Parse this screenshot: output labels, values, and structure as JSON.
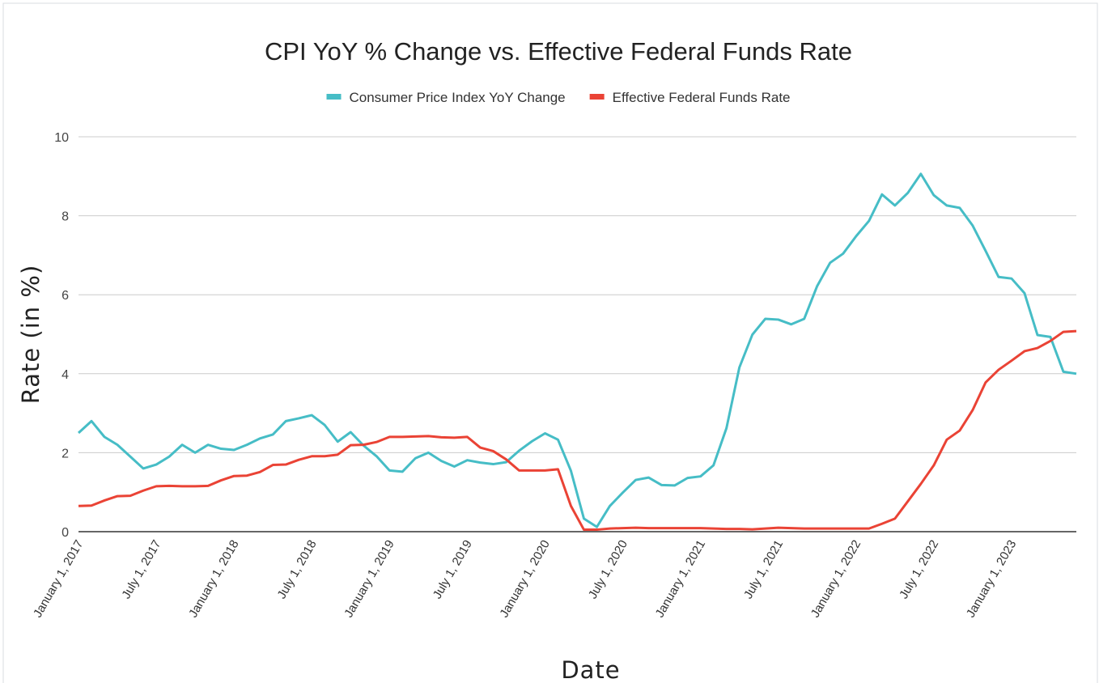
{
  "chart_data": {
    "type": "line",
    "title": "CPI YoY % Change vs. Effective Federal Funds Rate",
    "x_label": "Date",
    "y_label": "Rate (in %)",
    "categories": [
      "January 1, 2017",
      null,
      null,
      null,
      null,
      null,
      "July 1, 2017",
      null,
      null,
      null,
      null,
      null,
      "January 1, 2018",
      null,
      null,
      null,
      null,
      null,
      "July 1, 2018",
      null,
      null,
      null,
      null,
      null,
      "January 1, 2019",
      null,
      null,
      null,
      null,
      null,
      "July 1, 2019",
      null,
      null,
      null,
      null,
      null,
      "January 1, 2020",
      null,
      null,
      null,
      null,
      null,
      "July 1, 2020",
      null,
      null,
      null,
      null,
      null,
      "January 1, 2021",
      null,
      null,
      null,
      null,
      null,
      "July 1, 2021",
      null,
      null,
      null,
      null,
      null,
      "January 1, 2022",
      null,
      null,
      null,
      null,
      null,
      "July 1, 2022",
      null,
      null,
      null,
      null,
      null,
      "January 1, 2023",
      null,
      null,
      null,
      null,
      null
    ],
    "series": [
      {
        "name": "Consumer Price Index YoY Change",
        "color": "#46bdc6",
        "values": [
          2.5,
          2.8,
          2.4,
          2.2,
          1.9,
          1.6,
          1.7,
          1.9,
          2.2,
          2.0,
          2.2,
          2.1,
          2.07,
          2.2,
          2.36,
          2.46,
          2.8,
          2.87,
          2.95,
          2.7,
          2.28,
          2.52,
          2.18,
          1.91,
          1.55,
          1.52,
          1.86,
          2.0,
          1.79,
          1.65,
          1.81,
          1.75,
          1.71,
          1.76,
          2.05,
          2.29,
          2.49,
          2.33,
          1.54,
          0.33,
          0.12,
          0.65,
          0.99,
          1.31,
          1.37,
          1.18,
          1.17,
          1.36,
          1.4,
          1.68,
          2.62,
          4.16,
          4.99,
          5.39,
          5.37,
          5.25,
          5.39,
          6.22,
          6.81,
          7.04,
          7.48,
          7.87,
          8.54,
          8.26,
          8.58,
          9.06,
          8.52,
          8.26,
          8.2,
          7.75,
          7.11,
          6.45,
          6.41,
          6.04,
          4.98,
          4.93,
          4.05,
          4.0
        ]
      },
      {
        "name": "Effective Federal Funds Rate",
        "color": "#ea4335",
        "values": [
          0.65,
          0.66,
          0.79,
          0.9,
          0.91,
          1.04,
          1.15,
          1.16,
          1.15,
          1.15,
          1.16,
          1.3,
          1.41,
          1.42,
          1.51,
          1.69,
          1.7,
          1.82,
          1.91,
          1.91,
          1.95,
          2.19,
          2.2,
          2.27,
          2.4,
          2.4,
          2.41,
          2.42,
          2.39,
          2.38,
          2.4,
          2.13,
          2.04,
          1.83,
          1.55,
          1.55,
          1.55,
          1.58,
          0.65,
          0.05,
          0.05,
          0.08,
          0.09,
          0.1,
          0.09,
          0.09,
          0.09,
          0.09,
          0.09,
          0.08,
          0.07,
          0.07,
          0.06,
          0.08,
          0.1,
          0.09,
          0.08,
          0.08,
          0.08,
          0.08,
          0.08,
          0.08,
          0.2,
          0.33,
          0.77,
          1.21,
          1.68,
          2.33,
          2.56,
          3.08,
          3.78,
          4.1,
          4.33,
          4.57,
          4.65,
          4.83,
          5.06,
          5.08
        ]
      }
    ],
    "ylim": [
      0,
      10
    ],
    "yticks": [
      0,
      2,
      4,
      6,
      8,
      10
    ],
    "grid": true,
    "legend": "top"
  }
}
